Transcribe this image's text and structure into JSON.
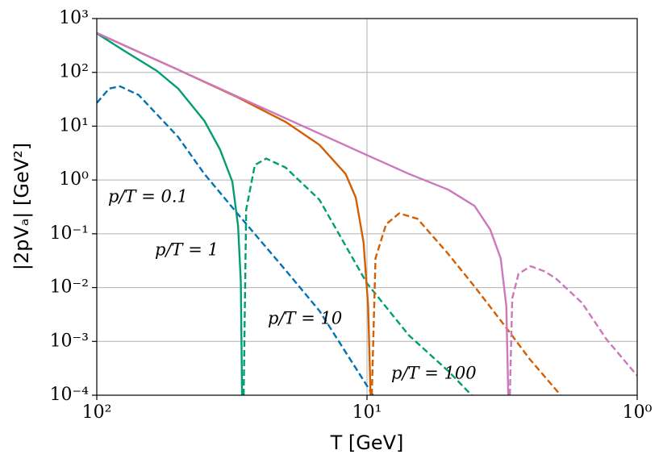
{
  "chart_data": {
    "type": "line",
    "xlabel": "T [GeV]",
    "ylabel": "|2pVₐ| [GeV²]",
    "xscale": "log",
    "yscale": "log",
    "grid": true,
    "xlim": [
      100,
      1
    ],
    "ylim": [
      0.0001,
      1000
    ],
    "xticks": [
      {
        "value": 100,
        "label": "10²"
      },
      {
        "value": 10,
        "label": "10¹"
      },
      {
        "value": 1,
        "label": "10⁰"
      }
    ],
    "yticks": [
      {
        "value": 0.0001,
        "label": "10⁻⁴"
      },
      {
        "value": 0.001,
        "label": "10⁻³"
      },
      {
        "value": 0.01,
        "label": "10⁻²"
      },
      {
        "value": 0.1,
        "label": "10⁻¹"
      },
      {
        "value": 1,
        "label": "10⁰"
      },
      {
        "value": 10,
        "label": "10¹"
      },
      {
        "value": 100,
        "label": "10²"
      },
      {
        "value": 1000,
        "label": "10³"
      }
    ],
    "series": [
      {
        "color": "#0173b2",
        "linestyle": "dashed",
        "x": [
          100,
          90,
          82,
          70,
          50,
          40,
          30,
          20,
          15,
          10,
          9.5
        ],
        "values": [
          27,
          50,
          55,
          38,
          6.3,
          1.3,
          0.23,
          0.021,
          0.0037,
          0.00015,
          0.0001
        ]
      },
      {
        "color": "#029e73",
        "linestyle": "solid",
        "x": [
          100,
          80,
          60,
          50,
          40,
          35,
          31.5,
          30,
          29.3,
          29.0
        ],
        "values": [
          530,
          260,
          107,
          50,
          12.6,
          3.7,
          0.93,
          0.14,
          0.0126,
          0.0001
        ]
      },
      {
        "color": "#029e73",
        "linestyle": "dashed",
        "x": [
          28.6,
          28,
          26,
          23.6,
          20,
          15,
          10,
          7,
          5,
          4.1
        ],
        "values": [
          0.0001,
          0.28,
          1.9,
          2.5,
          1.7,
          0.43,
          0.012,
          0.0013,
          0.00028,
          0.0001
        ]
      },
      {
        "color": "#d55e00",
        "linestyle": "solid",
        "x": [
          100,
          70,
          50,
          30,
          20,
          15,
          12,
          11,
          10.3,
          9.9,
          9.7
        ],
        "values": [
          540,
          240,
          112,
          34,
          12,
          4.5,
          1.3,
          0.47,
          0.07,
          0.0045,
          0.0001
        ]
      },
      {
        "color": "#d55e00",
        "linestyle": "dashed",
        "x": [
          9.6,
          9.3,
          8.5,
          7.6,
          6.5,
          5,
          4,
          3,
          2.5,
          1.92
        ],
        "values": [
          0.0001,
          0.035,
          0.15,
          0.24,
          0.19,
          0.042,
          0.0105,
          0.0016,
          0.00047,
          0.0001
        ]
      },
      {
        "color": "#cc78bc",
        "linestyle": "solid",
        "x": [
          100,
          70,
          50,
          30,
          20,
          10,
          7,
          5,
          4,
          3.5,
          3.2,
          3.05,
          3.0
        ],
        "values": [
          540,
          240,
          112,
          35,
          14,
          2.9,
          1.3,
          0.66,
          0.33,
          0.12,
          0.035,
          0.0045,
          0.0001
        ]
      },
      {
        "color": "#cc78bc",
        "linestyle": "dashed",
        "x": [
          2.96,
          2.9,
          2.75,
          2.48,
          2.2,
          2,
          1.6,
          1.3,
          1
        ],
        "values": [
          0.0001,
          0.0063,
          0.018,
          0.025,
          0.02,
          0.0148,
          0.0052,
          0.0011,
          0.00023
        ]
      }
    ],
    "annotations": [
      {
        "text": "p/T = 0.1",
        "color": "#0173b2"
      },
      {
        "text": "p/T = 1",
        "color": "#029e73"
      },
      {
        "text": "p/T = 10",
        "color": "#d55e00"
      },
      {
        "text": "p/T = 100",
        "color": "#cc78bc"
      }
    ]
  }
}
